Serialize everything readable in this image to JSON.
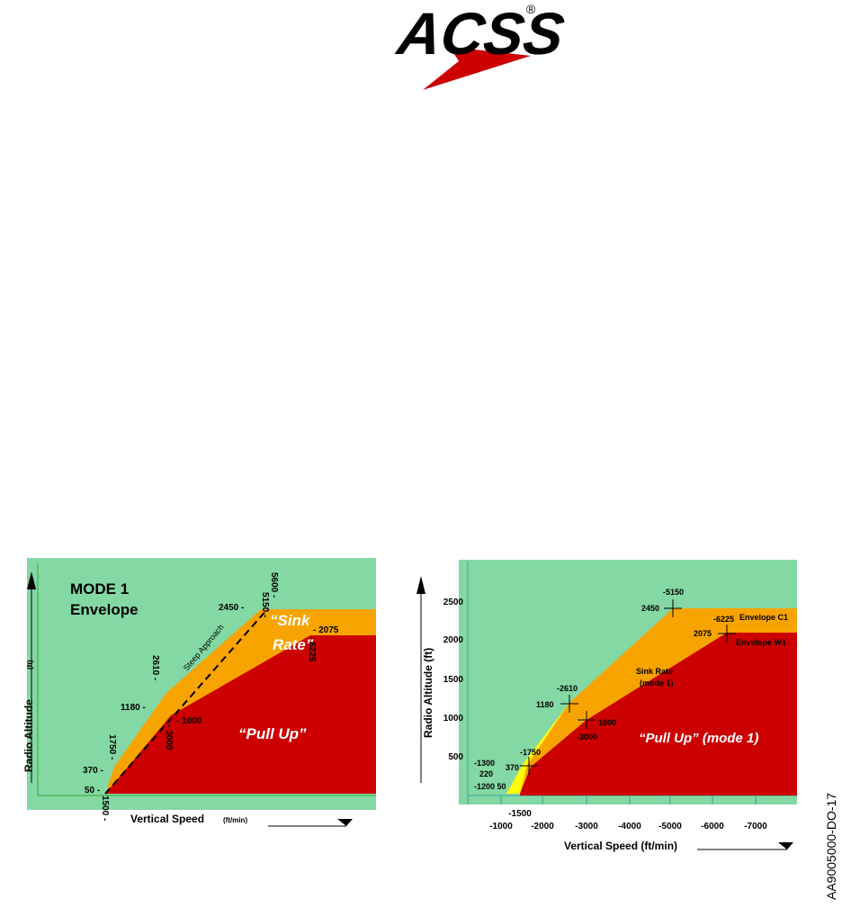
{
  "header": {
    "logo": "ACSS",
    "registered": "®"
  },
  "left_diagram": {
    "title_line1": "MODE 1",
    "title_line2": "Envelope",
    "y_axis_label": "Radio Altitude",
    "y_axis_unit": "(ft)",
    "x_axis_label": "Vertical Speed",
    "x_axis_unit": "(ft/min)",
    "sink_rate_line1": "“Sink",
    "sink_rate_line2": "Rate”",
    "pull_up": "“Pull Up”",
    "steep_approach": "Steep Approach",
    "labels": {
      "alt_2450": "2450 -",
      "vs_5150": "5150 -",
      "vs_5600": "5600 -",
      "alt_2075": "- 2075",
      "vs_6225": "- 6225",
      "vs_2610": "2610 -",
      "alt_1180": "1180 -",
      "alt_1000": "- 1000",
      "vs_3000": "- 3000",
      "vs_1750": "1750 -",
      "alt_370": "370 -",
      "alt_50": "50 -",
      "vs_1500": "1500 -"
    }
  },
  "right_diagram": {
    "y_axis_label": "Radio Altitude (ft)",
    "x_axis_label": "Vertical Speed  (ft/min)",
    "yticks": [
      "2500",
      "2000",
      "1500",
      "1000",
      "500"
    ],
    "xticks": [
      "-1000",
      "-2000",
      "-3000",
      "-4000",
      "-5000",
      "-6000",
      "-7000"
    ],
    "x_extra_tick": "-1500",
    "sink_rate_line1": "Sink Rate",
    "sink_rate_line2": "(mode 1)",
    "pull_up": "“Pull Up” (mode 1)",
    "envelope_c1": "Envelope C1",
    "envelope_w1": "Envelope W1",
    "labels": {
      "vs_5150": "-5150",
      "alt_2450": "2450",
      "vs_6225": "-6225",
      "alt_2075": "2075",
      "vs_2610": "-2610",
      "alt_1180": "1180",
      "alt_1000": "1000",
      "vs_3000": "-3000",
      "vs_1750": "-1750",
      "alt_370": "370",
      "vs_1300": "-1300",
      "alt_220": "220",
      "vs_1200_alt_50": "-1200 50"
    }
  },
  "figure_id": "AA9005000-DO-17"
}
